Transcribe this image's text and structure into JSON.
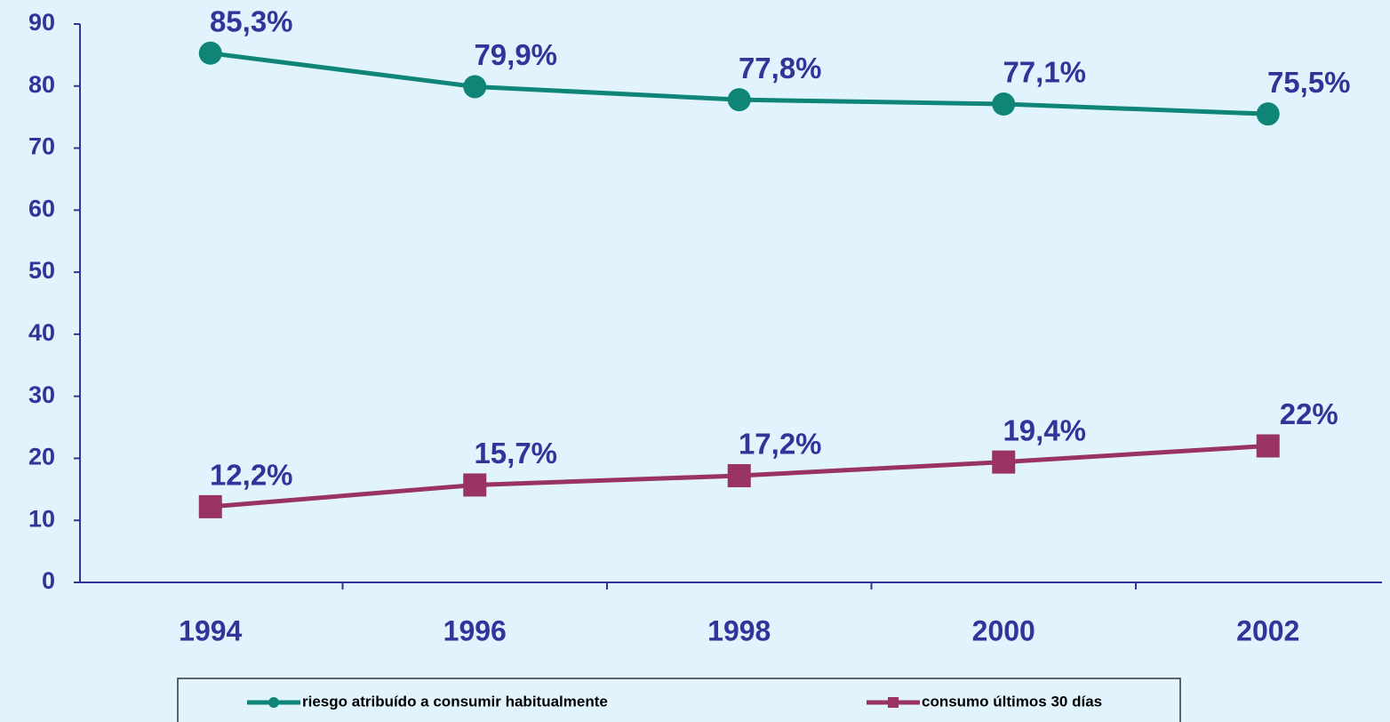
{
  "chart_data": {
    "type": "line",
    "categories": [
      "1994",
      "1996",
      "1998",
      "2000",
      "2002"
    ],
    "series": [
      {
        "name": "riesgo atribuído a consumir habitualmente",
        "color": "#0e8577",
        "marker": "circle",
        "values": [
          85.3,
          79.9,
          77.8,
          77.1,
          75.5
        ],
        "value_labels": [
          "85,3%",
          "79,9%",
          "77,8%",
          "77,1%",
          "75,5%"
        ]
      },
      {
        "name": "consumo últimos 30 días",
        "color": "#993366",
        "marker": "square",
        "values": [
          12.2,
          15.7,
          17.2,
          19.4,
          22
        ],
        "value_labels": [
          "12,2%",
          "15,7%",
          "17,2%",
          "19,4%",
          "22%"
        ]
      }
    ],
    "ylim": [
      0,
      90
    ],
    "yticks": [
      0,
      10,
      20,
      30,
      40,
      50,
      60,
      70,
      80,
      90
    ],
    "grid": false,
    "legend": "bottom"
  }
}
